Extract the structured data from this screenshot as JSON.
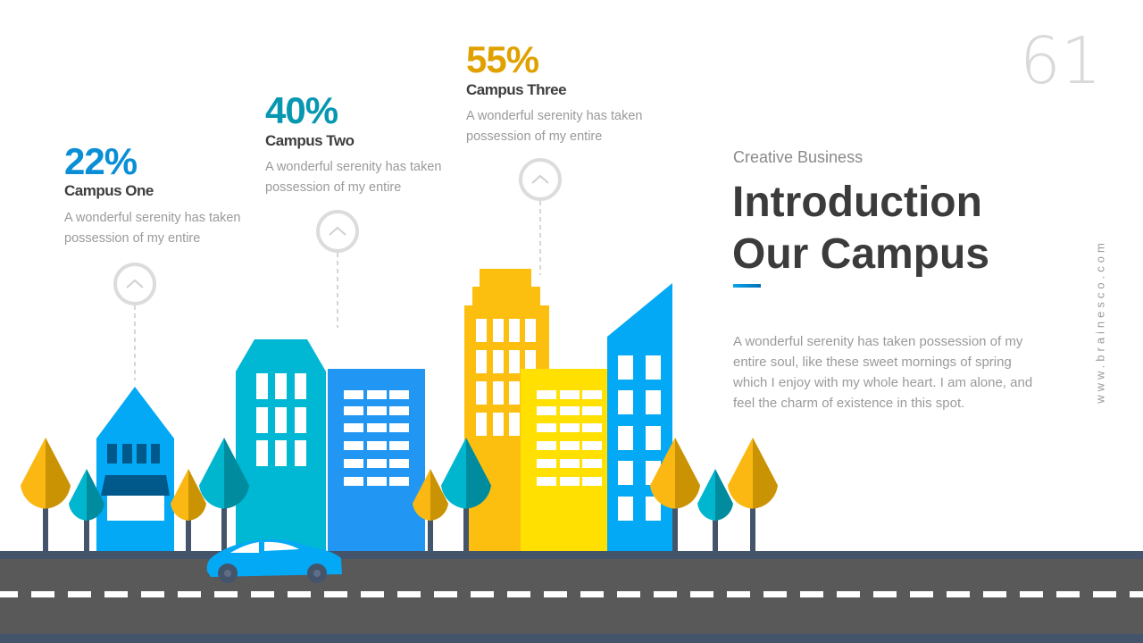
{
  "slide": {
    "page_number": "61",
    "subtitle": "Creative Business",
    "title_line1": "Introduction",
    "title_line2": "Our Campus",
    "body": "A wonderful serenity has taken possession of my entire soul, like these sweet mornings of spring which I enjoy with my whole heart. I am alone, and feel the charm of existence in this spot.",
    "website": "www.brainesco.com"
  },
  "campuses": [
    {
      "percent": "22%",
      "name": "Campus One",
      "desc": "A wonderful serenity has taken possession of my entire",
      "color": "#0a8fd6"
    },
    {
      "percent": "40%",
      "name": "Campus Two",
      "desc": "A wonderful serenity has taken possession of my entire",
      "color": "#0797b0"
    },
    {
      "percent": "55%",
      "name": "Campus Three",
      "desc": "A wonderful serenity has taken possession of my entire",
      "color": "#e0a100"
    }
  ],
  "markers": [
    "chevron-up-icon",
    "chevron-up-icon",
    "chevron-up-icon"
  ],
  "colors": {
    "accent": "#0aa4e8",
    "title": "#3b3b3b",
    "road": "#595959",
    "road_edge": "#44546a"
  }
}
